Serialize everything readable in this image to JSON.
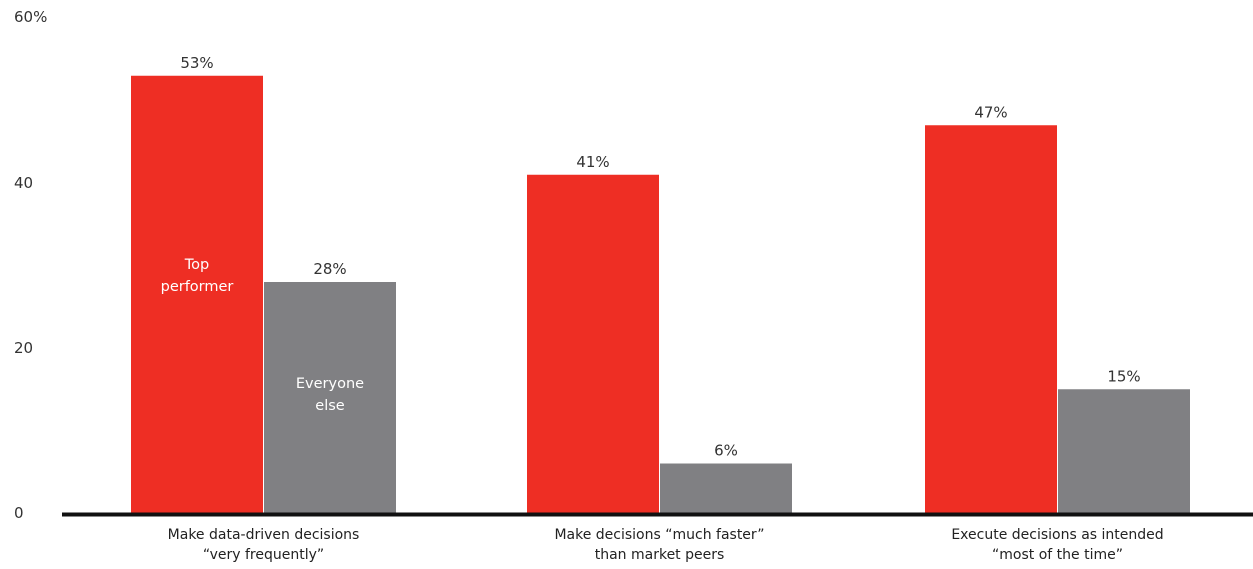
{
  "colors": {
    "top": "#ee2e24",
    "rest": "#808083",
    "axis": "#111111"
  },
  "chart_data": {
    "type": "bar",
    "categories": [
      [
        "Make data-driven decisions",
        "“very frequently”"
      ],
      [
        "Make decisions “much faster”",
        "than market peers"
      ],
      [
        "Execute decisions as intended",
        "“most of the time”"
      ]
    ],
    "series": [
      {
        "name": [
          "Top",
          "performer"
        ],
        "values": [
          53,
          41,
          47
        ],
        "labels": [
          "53%",
          "41%",
          "47%"
        ]
      },
      {
        "name": [
          "Everyone",
          "else"
        ],
        "values": [
          28,
          6,
          15
        ],
        "labels": [
          "28%",
          "6%",
          "15%"
        ]
      }
    ],
    "yticks": [
      {
        "value": 0,
        "label": "0"
      },
      {
        "value": 20,
        "label": "20"
      },
      {
        "value": 40,
        "label": "40"
      },
      {
        "value": 60,
        "label": "60%"
      }
    ],
    "ylim": [
      0,
      60
    ],
    "grid": false,
    "legend": "inside-first-group-bars"
  }
}
